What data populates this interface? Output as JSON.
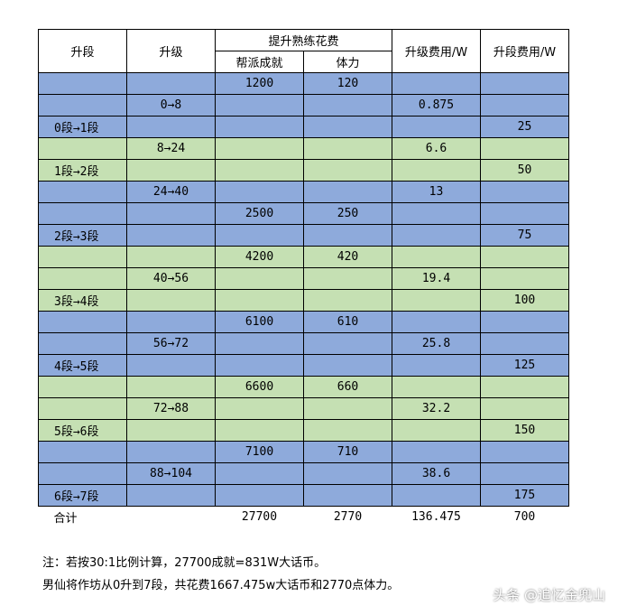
{
  "header": {
    "col1": "升段",
    "col2": "升级",
    "group": "提升熟练花费",
    "sub1": "帮派成就",
    "sub2": "体力",
    "col5": "升级费用/W",
    "col6": "升段费用/W"
  },
  "table": {
    "rows": [
      {
        "band": "blue",
        "cells": [
          null,
          null,
          "1200",
          "120",
          null,
          null
        ]
      },
      {
        "band": "blue",
        "cells": [
          null,
          "0→8",
          null,
          null,
          "0.875",
          null
        ]
      },
      {
        "band": "blue",
        "cells": [
          "0段→1段",
          null,
          null,
          null,
          null,
          "25"
        ]
      },
      {
        "band": "green",
        "cells": [
          null,
          "8→24",
          null,
          null,
          "6.6",
          null
        ]
      },
      {
        "band": "green",
        "cells": [
          "1段→2段",
          null,
          null,
          null,
          null,
          "50"
        ]
      },
      {
        "band": "blue",
        "cells": [
          null,
          "24→40",
          null,
          null,
          "13",
          null
        ]
      },
      {
        "band": "blue",
        "cells": [
          null,
          null,
          "2500",
          "250",
          null,
          null
        ]
      },
      {
        "band": "blue",
        "cells": [
          "2段→3段",
          null,
          null,
          null,
          null,
          "75"
        ]
      },
      {
        "band": "green",
        "cells": [
          null,
          null,
          "4200",
          "420",
          null,
          null
        ]
      },
      {
        "band": "green",
        "cells": [
          null,
          "40→56",
          null,
          null,
          "19.4",
          null
        ]
      },
      {
        "band": "green",
        "cells": [
          "3段→4段",
          null,
          null,
          null,
          null,
          "100"
        ]
      },
      {
        "band": "blue",
        "cells": [
          null,
          null,
          "6100",
          "610",
          null,
          null
        ]
      },
      {
        "band": "blue",
        "cells": [
          null,
          "56→72",
          null,
          null,
          "25.8",
          null
        ]
      },
      {
        "band": "blue",
        "cells": [
          "4段→5段",
          null,
          null,
          null,
          null,
          "125"
        ]
      },
      {
        "band": "green",
        "cells": [
          null,
          null,
          "6600",
          "660",
          null,
          null
        ]
      },
      {
        "band": "green",
        "cells": [
          null,
          "72→88",
          null,
          null,
          "32.2",
          null
        ]
      },
      {
        "band": "green",
        "cells": [
          "5段→6段",
          null,
          null,
          null,
          null,
          "150"
        ]
      },
      {
        "band": "blue",
        "cells": [
          null,
          null,
          "7100",
          "710",
          null,
          null
        ]
      },
      {
        "band": "blue",
        "cells": [
          null,
          "88→104",
          null,
          null,
          "38.6",
          null
        ]
      },
      {
        "band": "blue",
        "cells": [
          "6段→7段",
          null,
          null,
          null,
          null,
          "175"
        ]
      }
    ],
    "total": [
      "合计",
      null,
      "27700",
      "2770",
      "136.475",
      "700"
    ]
  },
  "notes": [
    "注：若按30:1比例计算，27700成就=831W大话币。",
    "男仙将作坊从0升到7段，共花费1667.475w大话币和2770点体力。"
  ],
  "watermark": "头条 @追忆金兜山"
}
